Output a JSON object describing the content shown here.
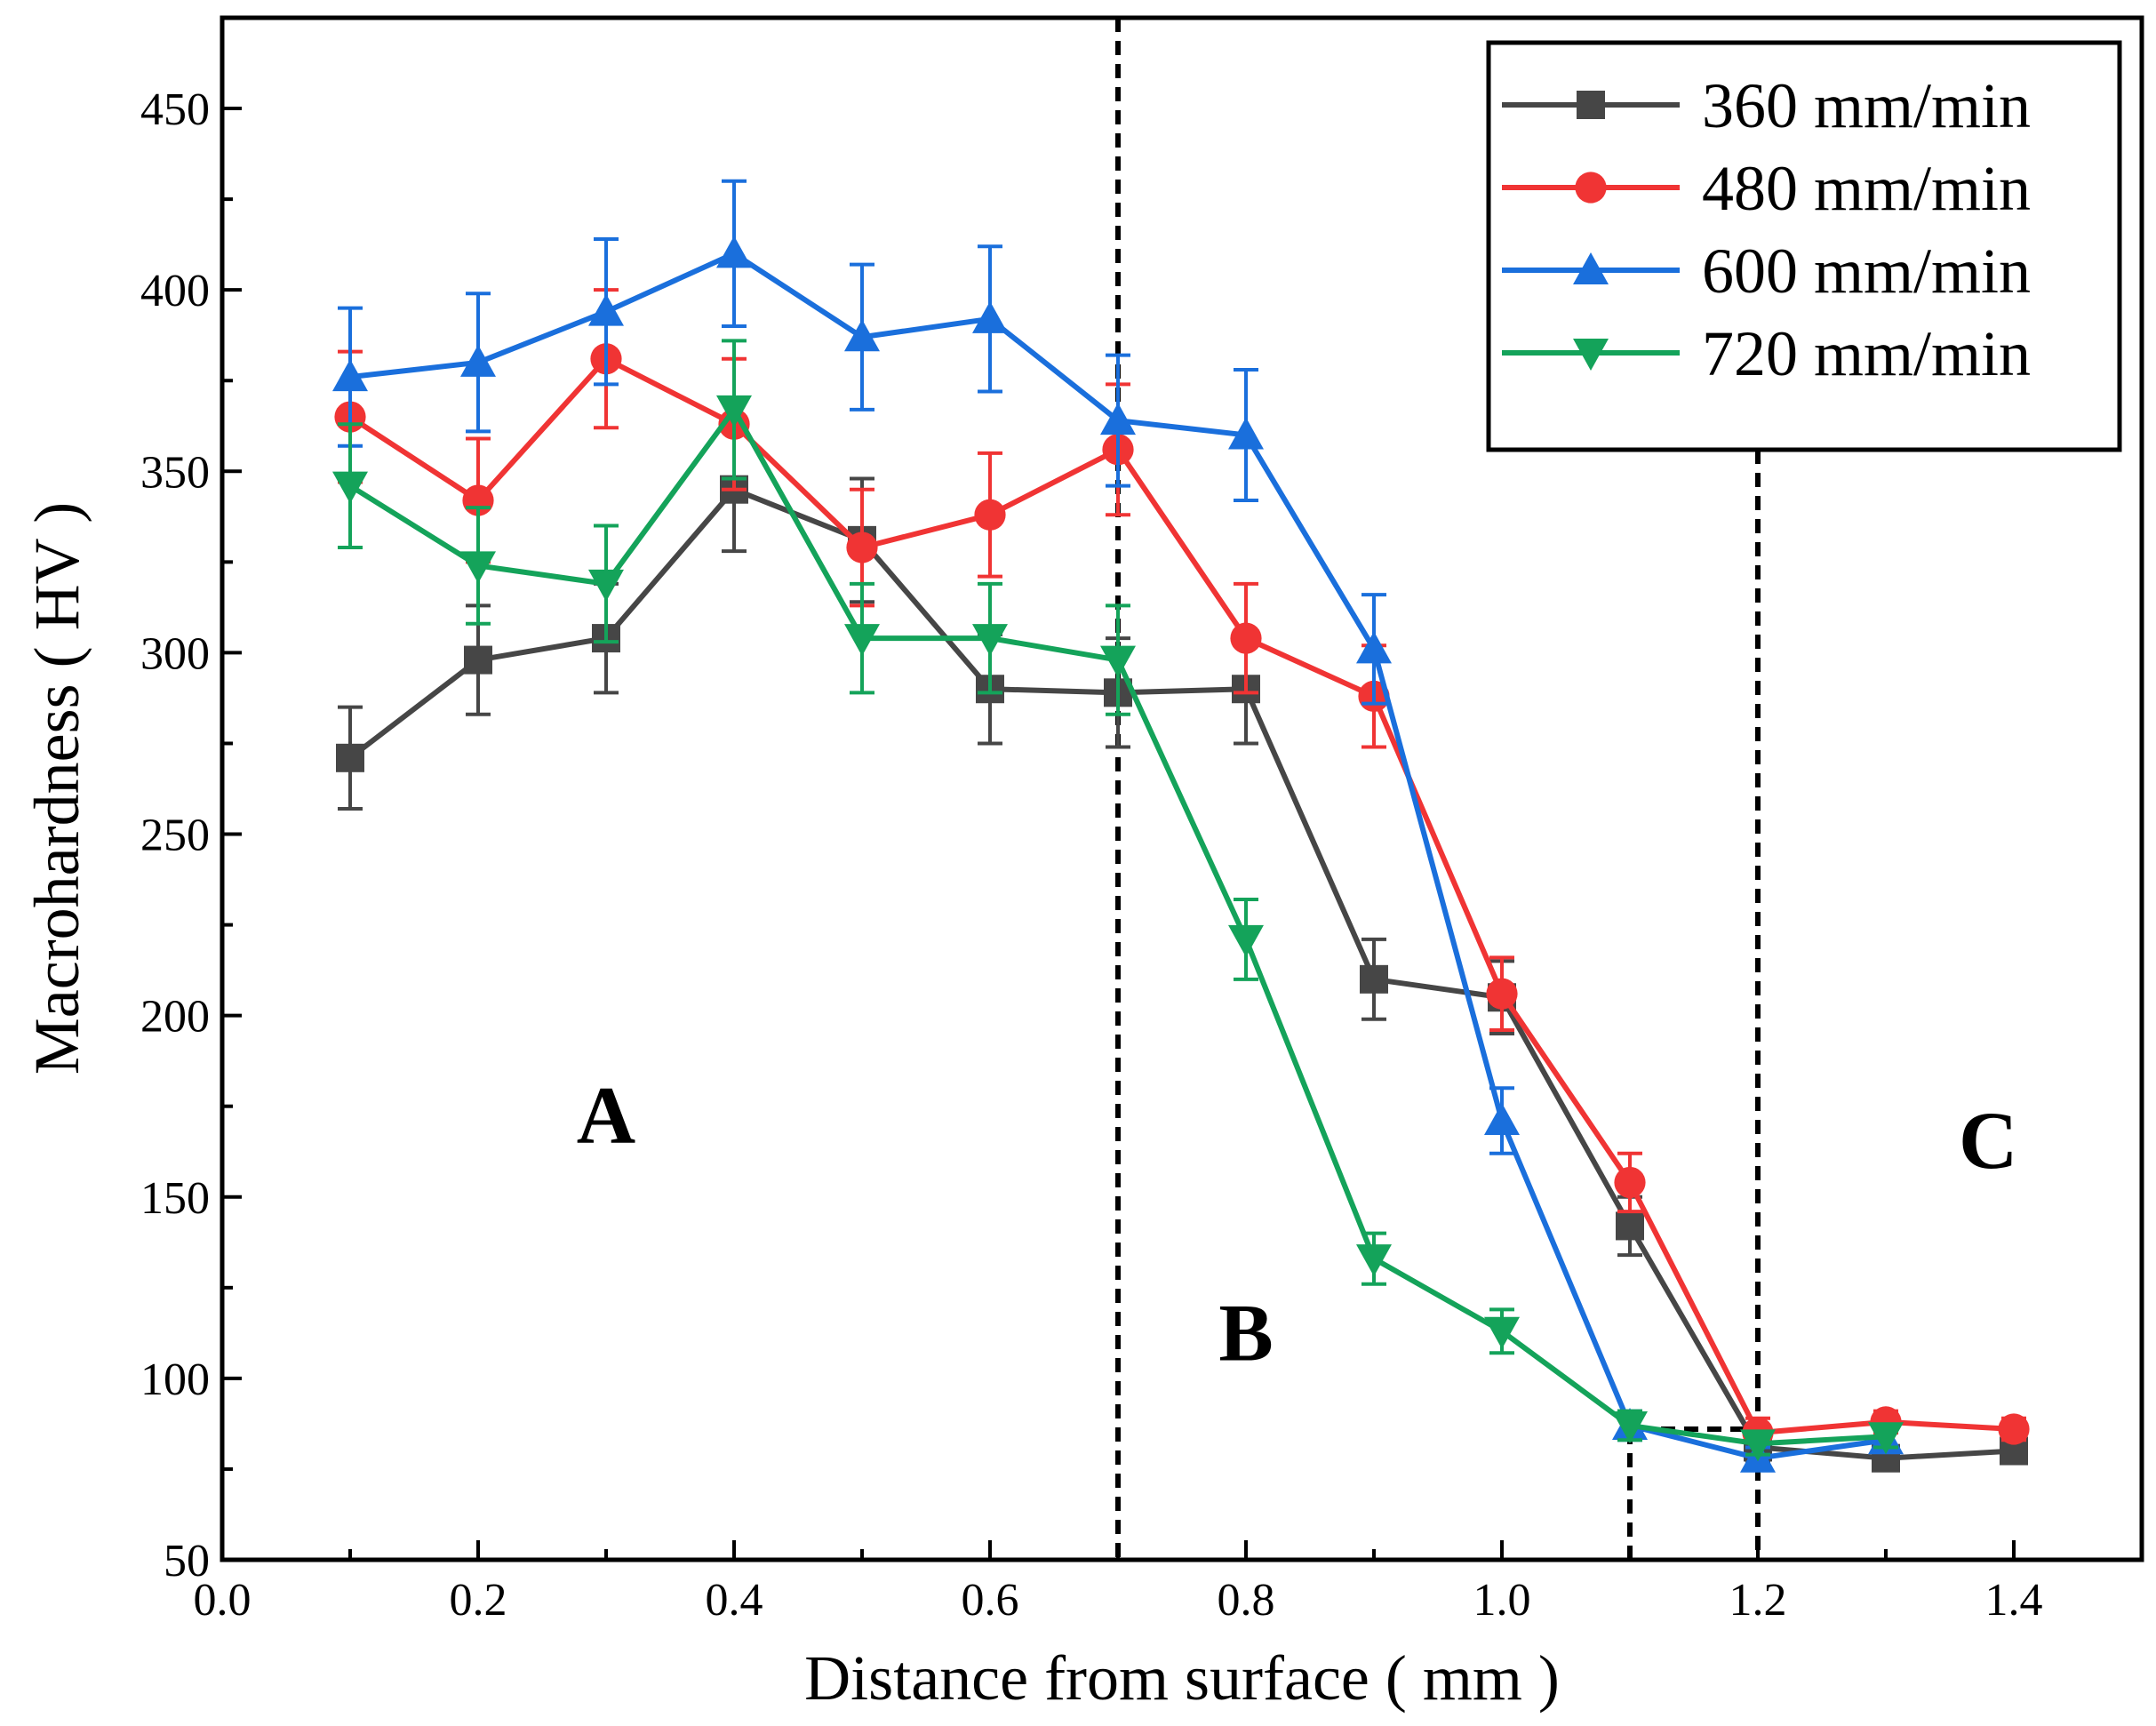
{
  "chart_data": {
    "type": "line",
    "xlabel": "Distance from surface ( mm )",
    "ylabel": "Macrohardness ( HV )",
    "xlim": [
      0.0,
      1.5
    ],
    "ylim": [
      50,
      475
    ],
    "xticks": [
      "0.0",
      "0.2",
      "0.4",
      "0.6",
      "0.8",
      "1.0",
      "1.2",
      "1.4"
    ],
    "xtick_values": [
      0.0,
      0.2,
      0.4,
      0.6,
      0.8,
      1.0,
      1.2,
      1.4
    ],
    "yticks": [
      "50",
      "100",
      "150",
      "200",
      "250",
      "300",
      "350",
      "400",
      "450"
    ],
    "ytick_values": [
      50,
      100,
      150,
      200,
      250,
      300,
      350,
      400,
      450
    ],
    "grid": false,
    "legend_position": "top-right",
    "region_boundaries": [
      0.7,
      1.2
    ],
    "zoom_box": {
      "x": [
        1.1,
        1.2
      ],
      "y": [
        50,
        86
      ]
    },
    "regions": [
      {
        "label": "A",
        "x": 0.3,
        "y": 165
      },
      {
        "label": "B",
        "x": 0.8,
        "y": 105
      },
      {
        "label": "C",
        "x": 1.38,
        "y": 158
      }
    ],
    "series": [
      {
        "name": "360 mm/min",
        "color": "#464646",
        "marker": "square",
        "x": [
          0.1,
          0.2,
          0.3,
          0.4,
          0.5,
          0.6,
          0.7,
          0.8,
          0.9,
          1.0,
          1.1,
          1.2,
          1.3,
          1.4
        ],
        "y": [
          271,
          298,
          304,
          345,
          331,
          290,
          289,
          290,
          210,
          205,
          142,
          81,
          78,
          80
        ],
        "err": [
          14,
          15,
          15,
          17,
          17,
          15,
          15,
          15,
          11,
          10,
          8,
          4,
          3,
          3
        ]
      },
      {
        "name": "480 mm/min",
        "color": "#f03434",
        "marker": "circle",
        "x": [
          0.1,
          0.2,
          0.3,
          0.4,
          0.5,
          0.6,
          0.7,
          0.8,
          0.9,
          1.0,
          1.1,
          1.2,
          1.3,
          1.4
        ],
        "y": [
          365,
          342,
          381,
          363,
          329,
          338,
          356,
          304,
          288,
          206,
          154,
          85,
          88,
          86
        ],
        "err": [
          18,
          17,
          19,
          18,
          16,
          17,
          18,
          15,
          14,
          10,
          8,
          4,
          3,
          3
        ]
      },
      {
        "name": "600 mm/min",
        "color": "#1a6fdc",
        "marker": "triangle-up",
        "x": [
          0.1,
          0.2,
          0.3,
          0.4,
          0.5,
          0.6,
          0.7,
          0.8,
          0.9,
          1.0,
          1.1,
          1.2,
          1.3
        ],
        "y": [
          376,
          380,
          394,
          410,
          387,
          392,
          364,
          360,
          301,
          171,
          87,
          78,
          83
        ],
        "err": [
          19,
          19,
          20,
          20,
          20,
          20,
          18,
          18,
          15,
          9,
          4,
          3,
          3
        ]
      },
      {
        "name": "720 mm/min",
        "color": "#14a35a",
        "marker": "triangle-down",
        "x": [
          0.1,
          0.2,
          0.3,
          0.4,
          0.5,
          0.6,
          0.7,
          0.8,
          0.9,
          1.0,
          1.1,
          1.2,
          1.3
        ],
        "y": [
          346,
          324,
          319,
          367,
          304,
          304,
          298,
          221,
          133,
          113,
          87,
          82,
          84
        ],
        "err": [
          17,
          16,
          16,
          19,
          15,
          15,
          15,
          11,
          7,
          6,
          4,
          3,
          3
        ]
      }
    ]
  }
}
